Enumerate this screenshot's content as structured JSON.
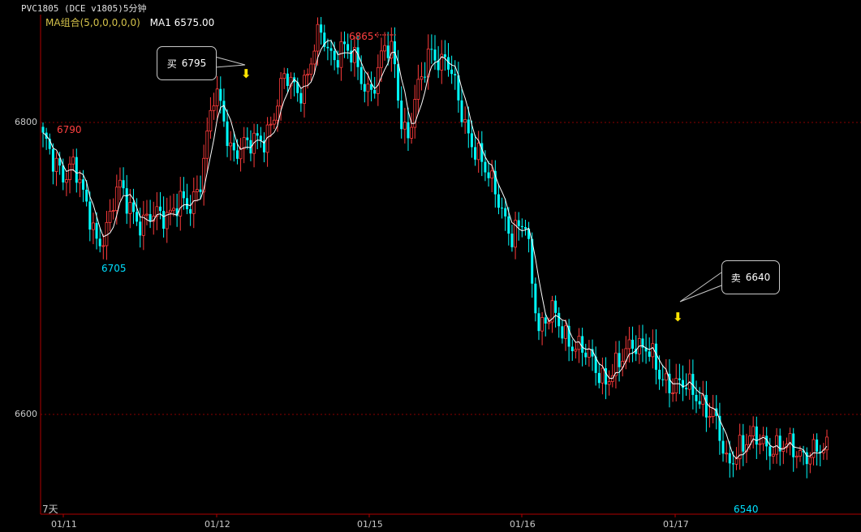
{
  "header": {
    "instrument": "PVC1805 (DCE v1805)5分钟"
  },
  "indicator": {
    "label": "MA组合(5,0,0,0,0,0)",
    "value_text": "MA1 6575.00"
  },
  "period_label": "7天",
  "annotations": {
    "buy": {
      "action": "买",
      "price": "6795"
    },
    "sell": {
      "action": "卖",
      "price": "6640"
    },
    "high_label": "6865",
    "low_label": "6540",
    "local_high_label": "6790",
    "local_low_label": "6705"
  },
  "colors": {
    "background": "#000000",
    "up": "#ff3c3c",
    "down": "#00ffff",
    "ma": "#ffffff",
    "grid": "#8b0000",
    "axis": "#b00000",
    "high_label": "#ff4040",
    "low_label": "#00e0ff",
    "marker_arrow": "#ffe400"
  },
  "chart_data": {
    "type": "candlestick",
    "title": "PVC1805 (DCE v1805)5分钟",
    "ylim": [
      6530,
      6880
    ],
    "y_ticks": [
      6600,
      6800
    ],
    "x_tick_labels": [
      "01/11",
      "01/12",
      "01/15",
      "01/16",
      "01/17"
    ],
    "series": [
      {
        "name": "MA1",
        "key_points": [
          {
            "date": "01/11",
            "value": 6780
          },
          {
            "date": "01/11",
            "value": 6730
          },
          {
            "date": "01/11",
            "value": 6755
          },
          {
            "date": "01/11",
            "value": 6725
          },
          {
            "date": "01/12",
            "value": 6740
          },
          {
            "date": "01/12",
            "value": 6780
          },
          {
            "date": "01/12",
            "value": 6810
          },
          {
            "date": "01/12",
            "value": 6790
          },
          {
            "date": "01/12",
            "value": 6795
          },
          {
            "date": "01/15",
            "value": 6825
          },
          {
            "date": "01/15",
            "value": 6845
          },
          {
            "date": "01/15",
            "value": 6820
          },
          {
            "date": "01/15",
            "value": 6840
          },
          {
            "date": "01/16",
            "value": 6805
          },
          {
            "date": "01/16",
            "value": 6845
          },
          {
            "date": "01/16",
            "value": 6770
          },
          {
            "date": "01/16",
            "value": 6730
          },
          {
            "date": "01/16",
            "value": 6670
          },
          {
            "date": "01/17",
            "value": 6630
          },
          {
            "date": "01/17",
            "value": 6650
          },
          {
            "date": "01/17",
            "value": 6620
          },
          {
            "date": "01/17",
            "value": 6570
          },
          {
            "date": "01/17",
            "value": 6575
          }
        ]
      }
    ],
    "price_path": [
      6790,
      6760,
      6775,
      6765,
      6780,
      6720,
      6710,
      6725,
      6745,
      6760,
      6740,
      6725,
      6730,
      6745,
      6740,
      6735,
      6740,
      6770,
      6825,
      6810,
      6785,
      6780,
      6790,
      6780,
      6785,
      6790,
      6810,
      6835,
      6820,
      6830,
      6825,
      6840,
      6850,
      6855,
      6845,
      6850,
      6840,
      6845,
      6825,
      6820,
      6830,
      6850,
      6840,
      6845,
      6815,
      6795,
      6830,
      6850,
      6845,
      6810,
      6775,
      6740,
      6725,
      6730,
      6680,
      6665,
      6660,
      6640,
      6620,
      6630,
      6635,
      6650,
      6645,
      6625,
      6620,
      6615,
      6595,
      6570,
      6590,
      6580,
      6575,
      6580,
      6575,
      6565,
      6575
    ],
    "highs_lows": {
      "high": 6865,
      "low": 6540,
      "left_high": 6790,
      "left_low": 6705
    },
    "signals": [
      {
        "type": "buy",
        "price": 6795
      },
      {
        "type": "sell",
        "price": 6640
      }
    ],
    "grid": true
  }
}
